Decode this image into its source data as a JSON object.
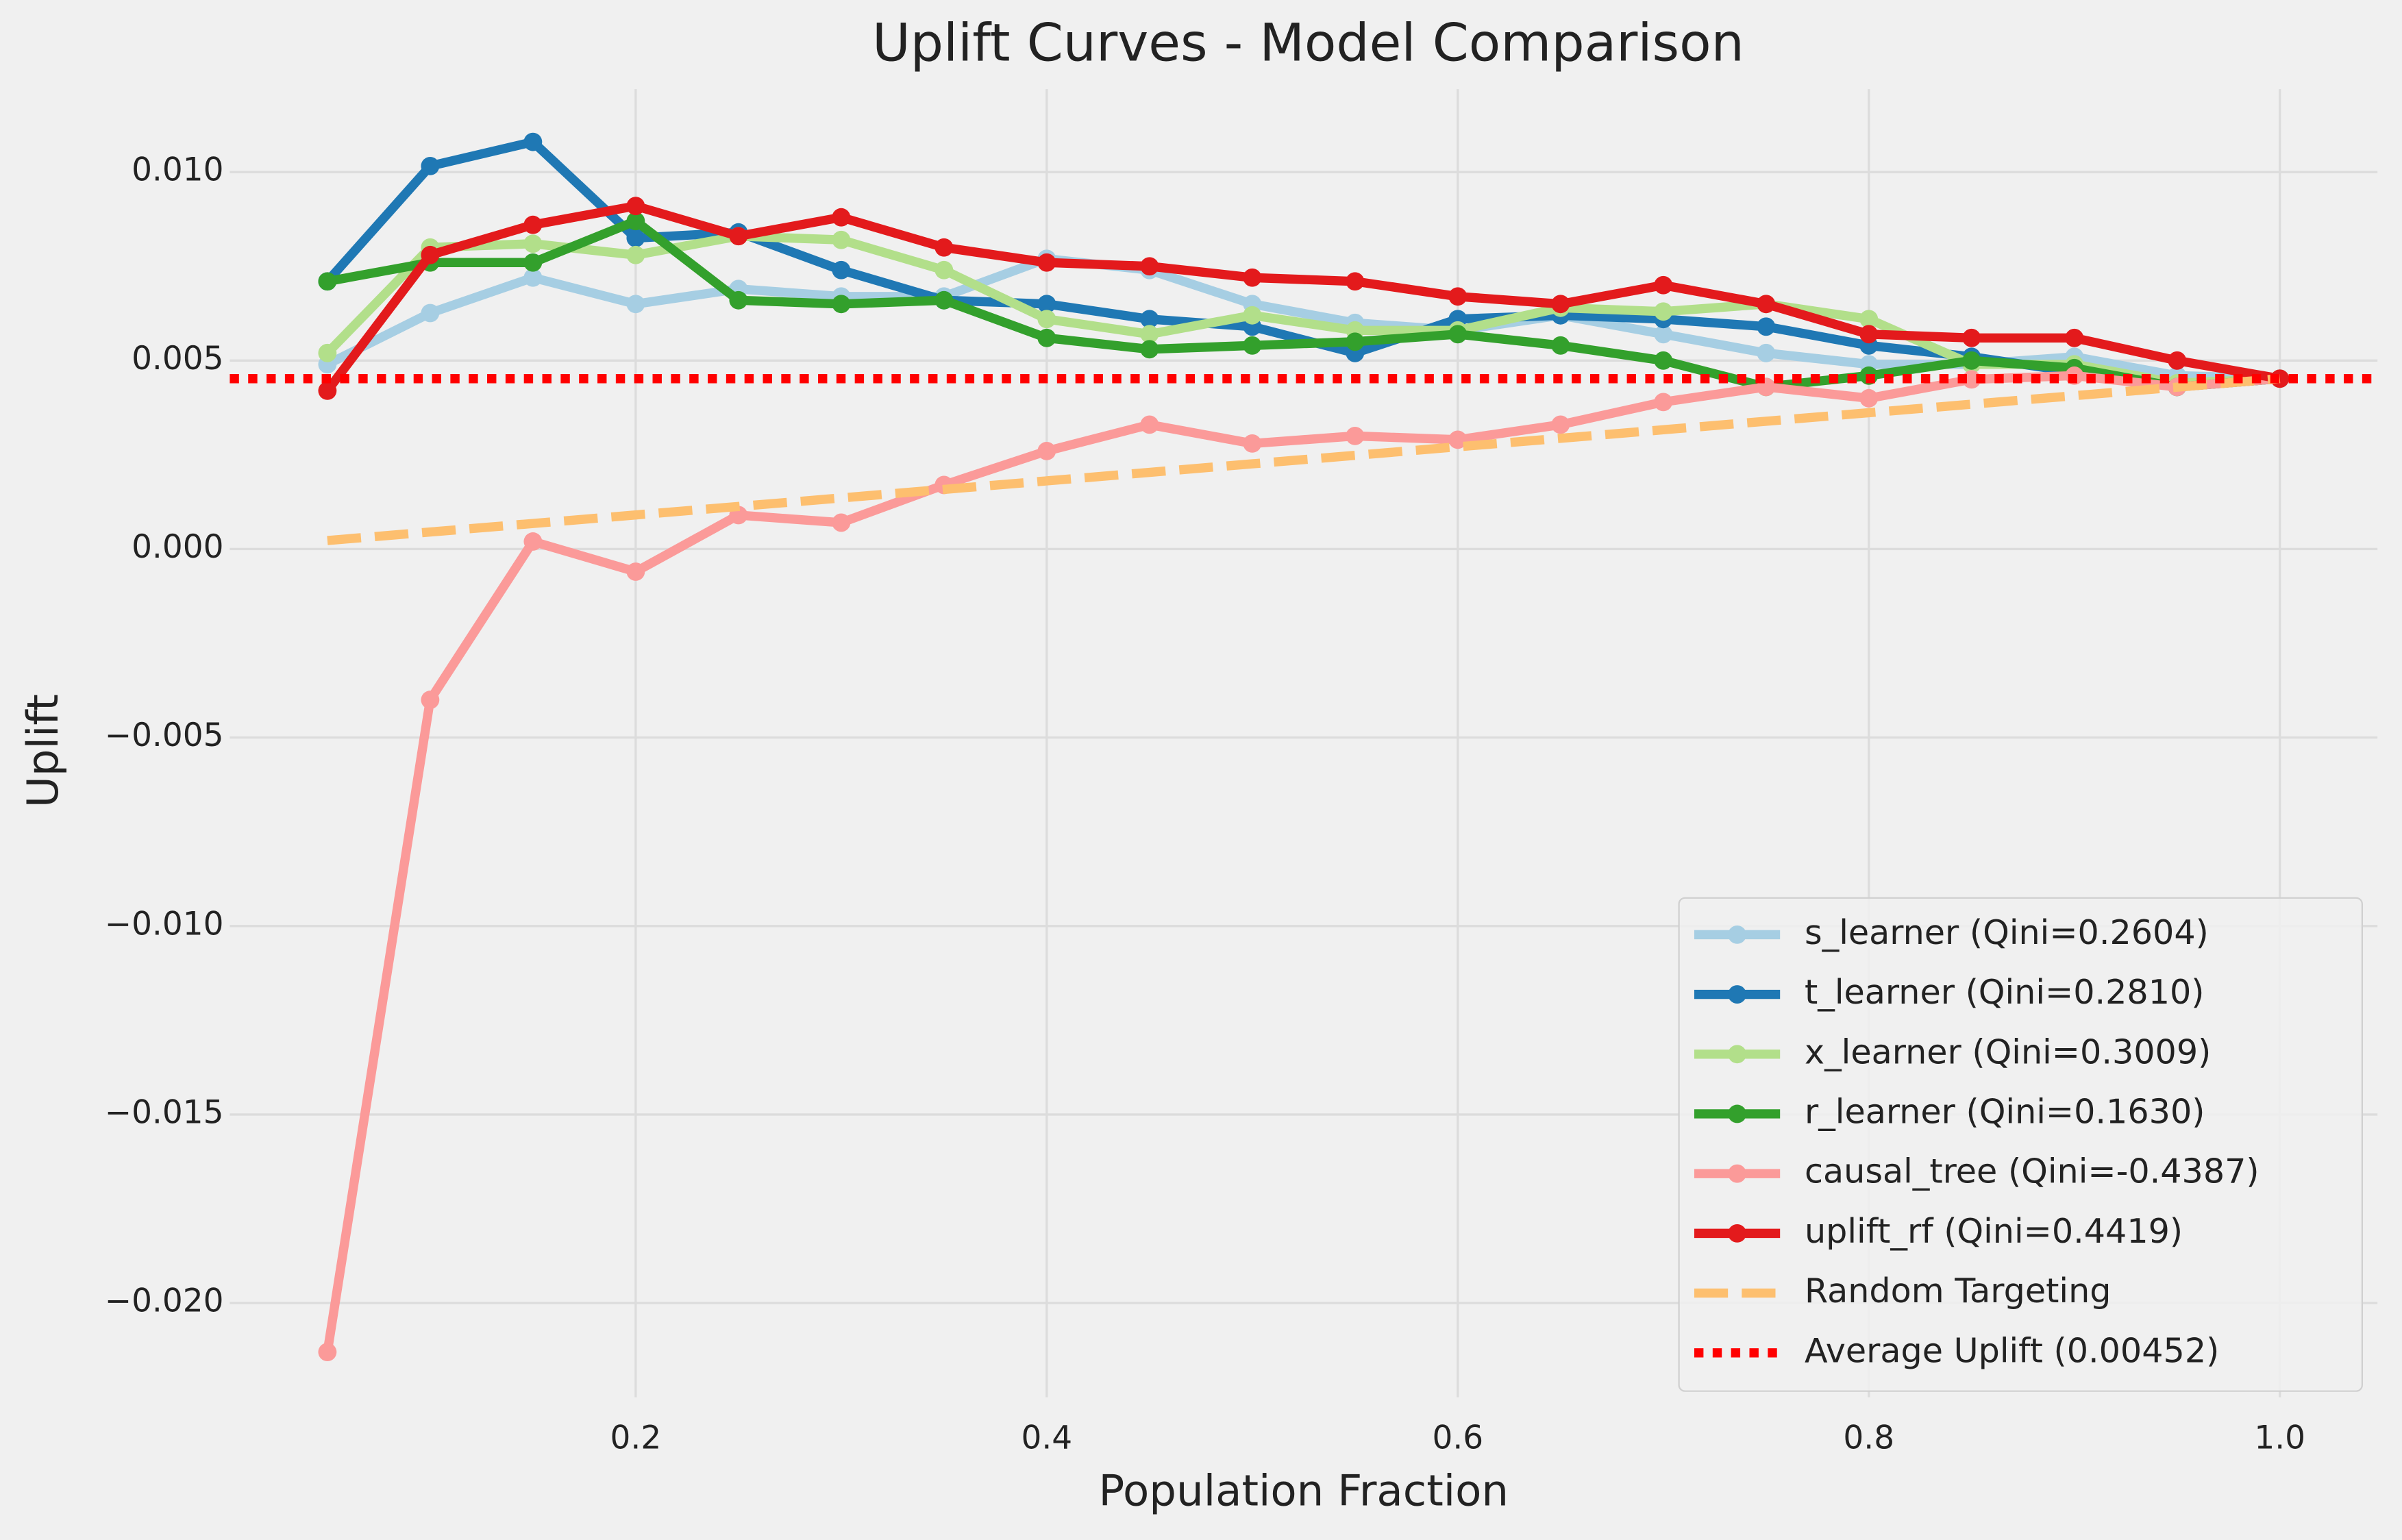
{
  "chart_data": {
    "type": "line",
    "title": "Uplift Curves - Model Comparison",
    "xlabel": "Population Fraction",
    "ylabel": "Uplift",
    "x": [
      0.05,
      0.1,
      0.15,
      0.2,
      0.25,
      0.3,
      0.35,
      0.4,
      0.45,
      0.5,
      0.55,
      0.6,
      0.65,
      0.7,
      0.75,
      0.8,
      0.85,
      0.9,
      0.95,
      1.0
    ],
    "series": [
      {
        "name": "s_learner (Qini=0.2604)",
        "color": "#a6cee3",
        "marker": true,
        "style": "solid",
        "values": [
          0.0049,
          0.00626,
          0.0072,
          0.0065,
          0.0069,
          0.0067,
          0.0067,
          0.0077,
          0.0074,
          0.0065,
          0.006,
          0.0058,
          0.0062,
          0.0057,
          0.0052,
          0.0049,
          0.0049,
          0.0051,
          0.0046,
          0.00452
        ]
      },
      {
        "name": "t_learner (Qini=0.2810)",
        "color": "#1f78b4",
        "marker": true,
        "style": "solid",
        "values": [
          0.0071,
          0.01016,
          0.0108,
          0.00825,
          0.0084,
          0.0074,
          0.0066,
          0.0065,
          0.0061,
          0.0059,
          0.0052,
          0.0061,
          0.0062,
          0.0061,
          0.0059,
          0.0054,
          0.0051,
          0.0047,
          0.0043,
          0.00452
        ]
      },
      {
        "name": "x_learner (Qini=0.3009)",
        "color": "#b2df8a",
        "marker": true,
        "style": "solid",
        "values": [
          0.0052,
          0.008,
          0.0081,
          0.0078,
          0.0083,
          0.0082,
          0.0074,
          0.0061,
          0.0057,
          0.0062,
          0.0058,
          0.0058,
          0.0064,
          0.0063,
          0.0065,
          0.0061,
          0.0049,
          0.0049,
          0.0044,
          0.00452
        ]
      },
      {
        "name": "r_learner (Qini=0.1630)",
        "color": "#33a02c",
        "marker": true,
        "style": "solid",
        "values": [
          0.0071,
          0.0076,
          0.0076,
          0.0087,
          0.0066,
          0.0065,
          0.0066,
          0.0056,
          0.0053,
          0.0054,
          0.0055,
          0.0057,
          0.0054,
          0.005,
          0.0043,
          0.0046,
          0.005,
          0.0048,
          0.0043,
          0.00452
        ]
      },
      {
        "name": "causal_tree (Qini=-0.4387)",
        "color": "#fb9a99",
        "marker": true,
        "style": "solid",
        "values": [
          -0.0213,
          -0.004,
          0.0002,
          -0.0006,
          0.0009,
          0.0007,
          0.0017,
          0.0026,
          0.0033,
          0.0028,
          0.003,
          0.0029,
          0.0033,
          0.0039,
          0.0043,
          0.004,
          0.0045,
          0.0046,
          0.0043,
          0.00452
        ]
      },
      {
        "name": "uplift_rf (Qini=0.4419)",
        "color": "#e31a1c",
        "marker": true,
        "style": "solid",
        "values": [
          0.0042,
          0.0078,
          0.0086,
          0.0091,
          0.0083,
          0.0088,
          0.008,
          0.0076,
          0.0075,
          0.0072,
          0.0071,
          0.0067,
          0.0065,
          0.007,
          0.0065,
          0.0057,
          0.0056,
          0.0056,
          0.005,
          0.00452
        ]
      },
      {
        "name": "Random Targeting",
        "color": "#fdbf6f",
        "marker": false,
        "style": "dashed",
        "values": [
          0.000226,
          0.000452,
          0.000678,
          0.000904,
          0.00113,
          0.001356,
          0.001582,
          0.001808,
          0.002034,
          0.00226,
          0.002486,
          0.002712,
          0.002938,
          0.003164,
          0.00339,
          0.003616,
          0.003842,
          0.004068,
          0.004294,
          0.00452
        ]
      },
      {
        "name": "Average Uplift (0.00452)",
        "color": "#ff0000",
        "marker": false,
        "style": "dotted",
        "value": 0.00452
      }
    ],
    "xlim": [
      0.0025,
      1.0475
    ],
    "ylim": [
      -0.0225,
      0.0122
    ],
    "xticks": [
      0.2,
      0.4,
      0.6,
      0.8,
      {
        "value": 1.0,
        "label": "1.0"
      }
    ],
    "yticks": [
      {
        "value": -0.02,
        "label": "−0.020"
      },
      {
        "value": -0.015,
        "label": "−0.015"
      },
      {
        "value": -0.01,
        "label": "−0.010"
      },
      {
        "value": -0.005,
        "label": "−0.005"
      },
      {
        "value": 0,
        "label": "0.000"
      },
      {
        "value": 0.005,
        "label": "0.005"
      },
      {
        "value": 0.01,
        "label": "0.010"
      }
    ],
    "grid": true,
    "legend": "lower right"
  }
}
